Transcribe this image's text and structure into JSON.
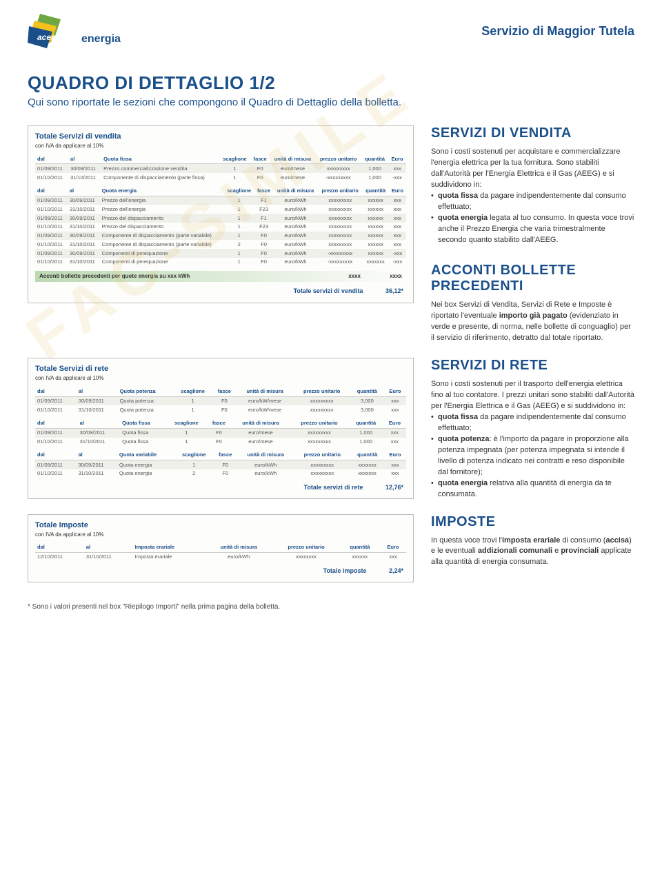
{
  "brand": {
    "name": "acea",
    "sub": "energia"
  },
  "service_title": "Servizio di Maggior Tutela",
  "page_title": "QUADRO DI DETTAGLIO 1/2",
  "page_subtitle": "Qui sono riportate le sezioni che compongono il Quadro di Dettaglio della bolletta.",
  "watermark": "FAC-SIMILE",
  "footnote": "* Sono i valori presenti nel box \"Riepilogo Importi\" nella prima pagina della bolletta.",
  "colors": {
    "brand_blue": "#1a4f8a",
    "accent_green": "#5ba348"
  },
  "vendita": {
    "box_title": "Totale Servizi di vendita",
    "iva": "con IVA da applicare al 10%",
    "t1": {
      "cols": [
        "dal",
        "al",
        "Quota fissa",
        "scaglione",
        "fasce",
        "unità di misura",
        "prezzo unitario",
        "quantità",
        "Euro"
      ],
      "rows": [
        [
          "01/09/2011",
          "30/09/2011",
          "Prezzo commercializzazione vendita",
          "1",
          "F0",
          "euro/mese",
          "xxxxxxxxx",
          "1,000",
          "xxx"
        ],
        [
          "01/10/2011",
          "31/10/2011",
          "Componente di dispacciamento (parte fissa)",
          "1",
          "F0",
          "euro/mese",
          "-xxxxxxxxx",
          "1,000",
          "-xxx"
        ]
      ]
    },
    "t2": {
      "cols": [
        "dal",
        "al",
        "Quota energia",
        "scaglione",
        "fasce",
        "unità di misura",
        "prezzo unitario",
        "quantità",
        "Euro"
      ],
      "rows": [
        [
          "01/09/2011",
          "30/09/2011",
          "Prezzo dell'energia",
          "1",
          "F1",
          "euro/kWh",
          "xxxxxxxxx",
          "xxxxxx",
          "xxx"
        ],
        [
          "01/10/2011",
          "31/10/2011",
          "Prezzo dell'energia",
          "1",
          "F23",
          "euro/kWh",
          "xxxxxxxxx",
          "xxxxxx",
          "xxx"
        ],
        [
          "01/09/2011",
          "30/09/2011",
          "Prezzo del dispacciamento",
          "1",
          "F1",
          "euro/kWh",
          "xxxxxxxxx",
          "xxxxxx",
          "xxx"
        ],
        [
          "01/10/2011",
          "31/10/2011",
          "Prezzo del dispacciamento",
          "1",
          "F23",
          "euro/kWh",
          "xxxxxxxxx",
          "xxxxxx",
          "xxx"
        ],
        [
          "01/09/2011",
          "30/09/2011",
          "Componente di dispacciamento (parte variabile)",
          "1",
          "F0",
          "euro/kWh",
          "xxxxxxxxx",
          "xxxxxx",
          "xxx"
        ],
        [
          "01/10/2011",
          "31/10/2011",
          "Componente di dispacciamento (parte variabile)",
          "2",
          "F0",
          "euro/kWh",
          "xxxxxxxxx",
          "xxxxxx",
          "xxx"
        ],
        [
          "01/09/2011",
          "30/09/2011",
          "Componenti di perequazione",
          "1",
          "F0",
          "euro/kWh",
          "-xxxxxxxxx",
          "xxxxxx",
          "-xxx"
        ],
        [
          "01/10/2011",
          "31/10/2011",
          "Componenti di perequazione",
          "1",
          "F0",
          "euro/kWh",
          "-xxxxxxxxx",
          "xxxxxxx",
          "-xxx"
        ]
      ]
    },
    "acconti": {
      "label": "Acconti bollette precedenti per quote energia su xxx kWh",
      "v1": "xxxx",
      "v2": "xxxx"
    },
    "total": {
      "label": "Totale servizi di vendita",
      "value": "36,12*"
    }
  },
  "side_vendita": {
    "title": "SERVIZI DI VENDITA",
    "p1": "Sono i costi sostenuti per acquistare e commercializzare l'energia elettrica per la tua fornitura. Sono stabiliti dall'Autorità per l'Energia Elettrica e il Gas (AEEG) e si suddividono in:",
    "b1a": "quota fissa",
    "b1b": " da pagare indipendentemente dal consumo effettuato;",
    "b2a": "quota energia",
    "b2b": " legata al tuo consumo. In questa voce trovi anche il Prezzo Energia che varia trimestralmente secondo quanto stabilito dall'AEEG."
  },
  "side_acconti": {
    "title": "ACCONTI BOLLETTE PRECEDENTI",
    "p1a": "Nei box Servizi di Vendita, Servizi di Rete e Imposte è riportato l'eventuale ",
    "p1b": "importo già pagato",
    "p1c": " (evidenziato in verde e presente, di norma, nelle bollette di conguaglio) per il servizio di riferimento, detratto dal totale riportato."
  },
  "rete": {
    "box_title": "Totale Servizi di rete",
    "iva": "con IVA da applicare al 10%",
    "t1": {
      "cols": [
        "dal",
        "al",
        "Quota potenza",
        "scaglione",
        "fasce",
        "unità di misura",
        "prezzo unitario",
        "quantità",
        "Euro"
      ],
      "rows": [
        [
          "01/09/2011",
          "30/09/2011",
          "Quota potenza",
          "1",
          "F0",
          "euro/kW/mese",
          "xxxxxxxxx",
          "3,000",
          "xxx"
        ],
        [
          "01/10/2011",
          "31/10/2011",
          "Quota potenza",
          "1",
          "F0",
          "euro/kW/mese",
          "xxxxxxxxx",
          "3,000",
          "xxx"
        ]
      ]
    },
    "t2": {
      "cols": [
        "dal",
        "al",
        "Quota fissa",
        "scaglione",
        "fasce",
        "unità di misura",
        "prezzo unitario",
        "quantità",
        "Euro"
      ],
      "rows": [
        [
          "01/09/2011",
          "30/09/2011",
          "Quota fissa",
          "1",
          "F0",
          "euro/mese",
          "xxxxxxxxx",
          "1,000",
          "xxx"
        ],
        [
          "01/10/2011",
          "31/10/2011",
          "Quota fissa",
          "1",
          "F0",
          "euro/mese",
          "xxxxxxxxx",
          "1,000",
          "xxx"
        ]
      ]
    },
    "t3": {
      "cols": [
        "dal",
        "al",
        "Quota variabile",
        "scaglione",
        "fasce",
        "unità di misura",
        "prezzo unitario",
        "quantità",
        "Euro"
      ],
      "rows": [
        [
          "01/09/2011",
          "30/09/2011",
          "Quota energia",
          "1",
          "F0",
          "euro/kWh",
          "xxxxxxxxx",
          "xxxxxxx",
          "xxx"
        ],
        [
          "01/10/2011",
          "31/10/2011",
          "Quota energia",
          "2",
          "F0",
          "euro/kWh",
          "xxxxxxxxx",
          "xxxxxxx",
          "xxx"
        ]
      ]
    },
    "total": {
      "label": "Totale servizi di rete",
      "value": "12,76*"
    }
  },
  "side_rete": {
    "title": "SERVIZI DI RETE",
    "p1": "Sono i costi sostenuti per il trasporto dell'energia elettrica fino al tuo contatore. I prezzi unitari sono stabiliti dall'Autorità per l'Energia Elettrica e il Gas (AEEG) e si suddividono in:",
    "b1a": "quota fissa",
    "b1b": " da pagare indipendentemente dal consumo effettuato;",
    "b2a": "quota potenza",
    "b2b": ": è l'importo da pagare in proporzione alla potenza impegnata (per potenza impegnata si intende il livello di potenza indicato nei contratti e reso disponibile dal fornitore);",
    "b3a": "quota energia",
    "b3b": " relativa alla quantità di energia da te consumata."
  },
  "imposte": {
    "box_title": "Totale Imposte",
    "iva": "con IVA da applicare al 10%",
    "t1": {
      "cols": [
        "dal",
        "al",
        "Imposta erariale",
        "unità di misura",
        "prezzo unitario",
        "quantità",
        "Euro"
      ],
      "rows": [
        [
          "12/10/2011",
          "31/10/2011",
          "Imposta erariale",
          "euro/kWh",
          "xxxxxxxx",
          "xxxxxx",
          "xxx"
        ]
      ]
    },
    "total": {
      "label": "Totale imposte",
      "value": "2,24*"
    }
  },
  "side_imposte": {
    "title": "IMPOSTE",
    "p1a": "In questa voce trovi l'",
    "p1b": "imposta erariale",
    "p1c": " di consumo (",
    "p1d": "accisa",
    "p1e": ") e le eventuali ",
    "p1f": "addizionali comunali",
    "p1g": " e ",
    "p1h": "provinciali",
    "p1i": " applicate alla quantità di energia consumata."
  }
}
